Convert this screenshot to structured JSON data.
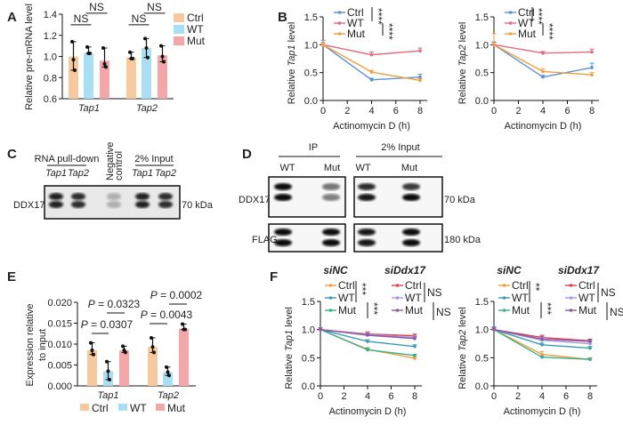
{
  "panel_labels": [
    "A",
    "B",
    "C",
    "D",
    "E",
    "F"
  ],
  "colors": {
    "ctrl_bar": "#f7c99e",
    "wt_bar": "#a9dff3",
    "mut_bar": "#f3a7a8",
    "ctrl_line": "#5b8fd6",
    "wt_line": "#e06a80",
    "mut_line": "#f0a040",
    "f_ctrl": "#f0a040",
    "f_wt": "#3a9ab0",
    "f_mut": "#3ab08a",
    "f_si_ctrl": "#e04050",
    "f_si_wt": "#a59ae0",
    "f_si_mut": "#8a5aa8"
  },
  "chart_data": [
    {
      "id": "A",
      "type": "bar",
      "ylabel": "Relative pre-mRNA level",
      "ylim": [
        0.6,
        1.4
      ],
      "yticks": [
        "0.6",
        "0.8",
        "1.0",
        "1.2",
        "1.4"
      ],
      "categories": [
        "Tap1",
        "Tap2"
      ],
      "series": [
        {
          "name": "Ctrl",
          "values": [
            1.0,
            0.99
          ],
          "points": [
            [
              1.14,
              0.97,
              0.87
            ],
            [
              1.04,
              0.98,
              0.98
            ]
          ]
        },
        {
          "name": "WT",
          "values": [
            1.03,
            1.08
          ],
          "points": [
            [
              1.09,
              1.03,
              1.03
            ],
            [
              1.17,
              1.08,
              0.99
            ]
          ]
        },
        {
          "name": "Mut",
          "values": [
            0.96,
            1.01
          ],
          "points": [
            [
              1.08,
              0.93,
              0.9
            ],
            [
              1.1,
              1.0,
              0.95
            ]
          ]
        }
      ],
      "annotations": [
        {
          "text": "NS",
          "pair": [
            "Ctrl",
            "WT"
          ],
          "category": "Tap1"
        },
        {
          "text": "NS",
          "pair": [
            "WT",
            "Mut"
          ],
          "category": "Tap1"
        },
        {
          "text": "NS",
          "pair": [
            "Ctrl",
            "WT"
          ],
          "category": "Tap2"
        },
        {
          "text": "NS",
          "pair": [
            "WT",
            "Mut"
          ],
          "category": "Tap2"
        }
      ],
      "legend": "right"
    },
    {
      "id": "B1",
      "type": "line",
      "ylabel_pre": "Relative ",
      "ylabel_it": "Tap1",
      "ylabel_post": " level",
      "xlabel": "Actinomycin D (h)",
      "x": [
        0,
        4,
        8
      ],
      "xticks": [
        "0",
        "2",
        "4",
        "6",
        "8"
      ],
      "xlim": [
        0,
        8
      ],
      "ylim": [
        0,
        1.5
      ],
      "yticks": [
        "0.0",
        "0.5",
        "1.0",
        "1.5"
      ],
      "series": [
        {
          "name": "Ctrl",
          "values": [
            1,
            0.37,
            0.42
          ],
          "err": [
            0.08,
            0.03,
            0.05
          ]
        },
        {
          "name": "WT",
          "values": [
            1,
            0.82,
            0.89
          ],
          "err": [
            0.04,
            0.05,
            0.05
          ]
        },
        {
          "name": "Mut",
          "values": [
            1,
            0.51,
            0.36
          ],
          "err": [
            0.03,
            0.03,
            0.03
          ]
        }
      ],
      "significance": [
        "****",
        "****"
      ],
      "legend": "top-left"
    },
    {
      "id": "B2",
      "type": "line",
      "ylabel_pre": "Relative ",
      "ylabel_it": "Tap2",
      "ylabel_post": " level",
      "xlabel": "Actinomycin D (h)",
      "x": [
        0,
        4,
        8
      ],
      "xticks": [
        "0",
        "2",
        "4",
        "6",
        "8"
      ],
      "xlim": [
        0,
        8
      ],
      "ylim": [
        0,
        1.5
      ],
      "yticks": [
        "0.0",
        "0.5",
        "1.0",
        "1.5"
      ],
      "series": [
        {
          "name": "Ctrl",
          "values": [
            1,
            0.42,
            0.59
          ],
          "err": [
            0.05,
            0.03,
            0.08
          ]
        },
        {
          "name": "WT",
          "values": [
            1,
            0.85,
            0.87
          ],
          "err": [
            0.04,
            0.03,
            0.05
          ]
        },
        {
          "name": "Mut",
          "values": [
            1,
            0.52,
            0.46
          ],
          "err": [
            0.2,
            0.05,
            0.04
          ]
        }
      ],
      "significance": [
        "****",
        "****"
      ],
      "legend": "top-left"
    },
    {
      "id": "E",
      "type": "bar",
      "ylabel": "Expression relative to input",
      "ylabel_lines": [
        "Expression relative",
        "to input"
      ],
      "ylim": [
        0,
        0.02
      ],
      "yticks": [
        "0.000",
        "0.005",
        "0.010",
        "0.015",
        "0.020"
      ],
      "categories": [
        "Tap1",
        "Tap2"
      ],
      "series": [
        {
          "name": "Ctrl",
          "values": [
            0.0085,
            0.0093
          ],
          "points": [
            [
              0.0103,
              0.0085,
              0.0075
            ],
            [
              0.0115,
              0.0093,
              0.008
            ]
          ]
        },
        {
          "name": "WT",
          "values": [
            0.0035,
            0.0033
          ],
          "points": [
            [
              0.0058,
              0.0035,
              0.0015
            ],
            [
              0.0045,
              0.0033,
              0.0025
            ]
          ]
        },
        {
          "name": "Mut",
          "values": [
            0.0085,
            0.0137
          ],
          "points": [
            [
              0.0095,
              0.0085,
              0.008
            ],
            [
              0.0148,
              0.0135,
              0.0135
            ]
          ]
        }
      ],
      "annotations": [
        {
          "text": "0.0307",
          "pair": [
            "Ctrl",
            "WT"
          ],
          "category": "Tap1"
        },
        {
          "text": "0.0323",
          "pair": [
            "WT",
            "Mut"
          ],
          "category": "Tap1"
        },
        {
          "text": "0.0043",
          "pair": [
            "Ctrl",
            "WT"
          ],
          "category": "Tap2"
        },
        {
          "text": "0.0002",
          "pair": [
            "WT",
            "Mut"
          ],
          "category": "Tap2"
        }
      ],
      "p_prefix": "P",
      "legend": "bottom"
    },
    {
      "id": "F1",
      "type": "line",
      "ylabel_pre": "Relative ",
      "ylabel_it": "Tap1",
      "ylabel_post": " level",
      "xlabel": "Actinomycin D (h)",
      "x": [
        0,
        4,
        8
      ],
      "xticks": [
        "0",
        "2",
        "4",
        "6",
        "8"
      ],
      "xlim": [
        0,
        8
      ],
      "ylim": [
        0,
        1.5
      ],
      "yticks": [
        "0.0",
        "0.5",
        "1.0",
        "1.5"
      ],
      "groups": [
        "siNC",
        "siDdx17"
      ],
      "series": [
        {
          "group": "siNC",
          "name": "Ctrl",
          "values": [
            1,
            0.65,
            0.49
          ],
          "err": [
            0.03,
            0.03,
            0.02
          ]
        },
        {
          "group": "siNC",
          "name": "WT",
          "values": [
            1,
            0.79,
            0.7
          ],
          "err": [
            0.03,
            0.03,
            0.03
          ]
        },
        {
          "group": "siNC",
          "name": "Mut",
          "values": [
            1,
            0.64,
            0.54
          ],
          "err": [
            0.03,
            0.03,
            0.02
          ]
        },
        {
          "group": "siDdx17",
          "name": "Ctrl",
          "values": [
            1,
            0.92,
            0.89
          ],
          "err": [
            0.03,
            0.04,
            0.03
          ]
        },
        {
          "group": "siDdx17",
          "name": "WT",
          "values": [
            1,
            0.91,
            0.86
          ],
          "err": [
            0.03,
            0.03,
            0.03
          ]
        },
        {
          "group": "siDdx17",
          "name": "Mut",
          "values": [
            1,
            0.9,
            0.84
          ],
          "err": [
            0.03,
            0.03,
            0.03
          ]
        }
      ],
      "significance": [
        "***",
        "***"
      ],
      "significance_si": [
        "NS",
        "NS"
      ],
      "legend": "top"
    },
    {
      "id": "F2",
      "type": "line",
      "ylabel_pre": "Relative ",
      "ylabel_it": "Tap2",
      "ylabel_post": " level",
      "xlabel": "Actinomycin D (h)",
      "x": [
        0,
        4,
        8
      ],
      "xticks": [
        "0",
        "2",
        "4",
        "6",
        "8"
      ],
      "xlim": [
        0,
        8
      ],
      "ylim": [
        0,
        1.5
      ],
      "yticks": [
        "0.0",
        "0.5",
        "1.0",
        "1.5"
      ],
      "groups": [
        "siNC",
        "siDdx17"
      ],
      "series": [
        {
          "group": "siNC",
          "name": "Ctrl",
          "values": [
            1,
            0.56,
            0.47
          ],
          "err": [
            0.03,
            0.05,
            0.03
          ]
        },
        {
          "group": "siNC",
          "name": "WT",
          "values": [
            1,
            0.73,
            0.67
          ],
          "err": [
            0.05,
            0.03,
            0.03
          ]
        },
        {
          "group": "siNC",
          "name": "Mut",
          "values": [
            1,
            0.51,
            0.47
          ],
          "err": [
            0.03,
            0.02,
            0.02
          ]
        },
        {
          "group": "siDdx17",
          "name": "Ctrl",
          "values": [
            1,
            0.86,
            0.8
          ],
          "err": [
            0.03,
            0.04,
            0.03
          ]
        },
        {
          "group": "siDdx17",
          "name": "WT",
          "values": [
            1,
            0.81,
            0.75
          ],
          "err": [
            0.03,
            0.05,
            0.03
          ]
        },
        {
          "group": "siDdx17",
          "name": "Mut",
          "values": [
            1,
            0.83,
            0.79
          ],
          "err": [
            0.03,
            0.05,
            0.03
          ]
        }
      ],
      "significance": [
        "**",
        "***"
      ],
      "significance_si": [
        "NS",
        "NS"
      ],
      "legend": "top"
    }
  ],
  "blot_C": {
    "group1": "RNA pull-down",
    "lanes1": [
      "Tap1",
      "Tap2"
    ],
    "neg": [
      "Negative",
      "control"
    ],
    "group2": "2% Input",
    "lanes2": [
      "Tap1",
      "Tap2"
    ],
    "row": "DDX17",
    "marker": "70 kDa"
  },
  "blot_D": {
    "group1": "IP",
    "group2": "2% Input",
    "lanes": [
      "WT",
      "Mut",
      "WT",
      "Mut"
    ],
    "rows": [
      "DDX17",
      "FLAG"
    ],
    "markers": [
      "70 kDa",
      "180 kDa"
    ]
  }
}
